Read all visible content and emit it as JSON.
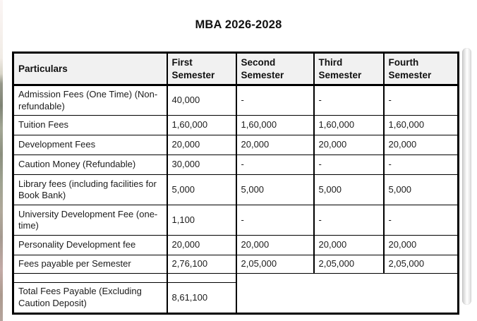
{
  "page": {
    "title": "MBA 2026-2028"
  },
  "table": {
    "columns": [
      "Particulars",
      "First Semester",
      "Second Semester",
      "Third Semester",
      "Fourth Semester"
    ],
    "rows": [
      {
        "label": "Admission Fees (One Time) (Non-refundable)",
        "values": [
          "40,000",
          "-",
          "-",
          "-"
        ]
      },
      {
        "label": "Tuition Fees",
        "values": [
          "1,60,000",
          "1,60,000",
          "1,60,000",
          "1,60,000"
        ]
      },
      {
        "label": "Development Fees",
        "values": [
          "20,000",
          "20,000",
          "20,000",
          "20,000"
        ]
      },
      {
        "label": "Caution Money (Refundable)",
        "values": [
          "30,000",
          "-",
          "-",
          "-"
        ]
      },
      {
        "label": "Library fees (including facilities for Book Bank)",
        "values": [
          "5,000",
          "5,000",
          "5,000",
          "5,000"
        ]
      },
      {
        "label": "University Development Fee (one-time)",
        "values": [
          "1,100",
          "-",
          "-",
          "-"
        ]
      },
      {
        "label": "Personality Development fee",
        "values": [
          "20,000",
          "20,000",
          "20,000",
          "20,000"
        ]
      },
      {
        "label": "Fees payable per Semester",
        "values": [
          "2,76,100",
          "2,05,000",
          "2,05,000",
          "2,05,000"
        ]
      }
    ],
    "total_row": {
      "label": "Total Fees Payable (Excluding Caution Deposit)",
      "value": "8,61,100"
    }
  },
  "colors": {
    "header_background": "#f1f1f1",
    "border": "#000000",
    "text": "#1c1c1c"
  }
}
